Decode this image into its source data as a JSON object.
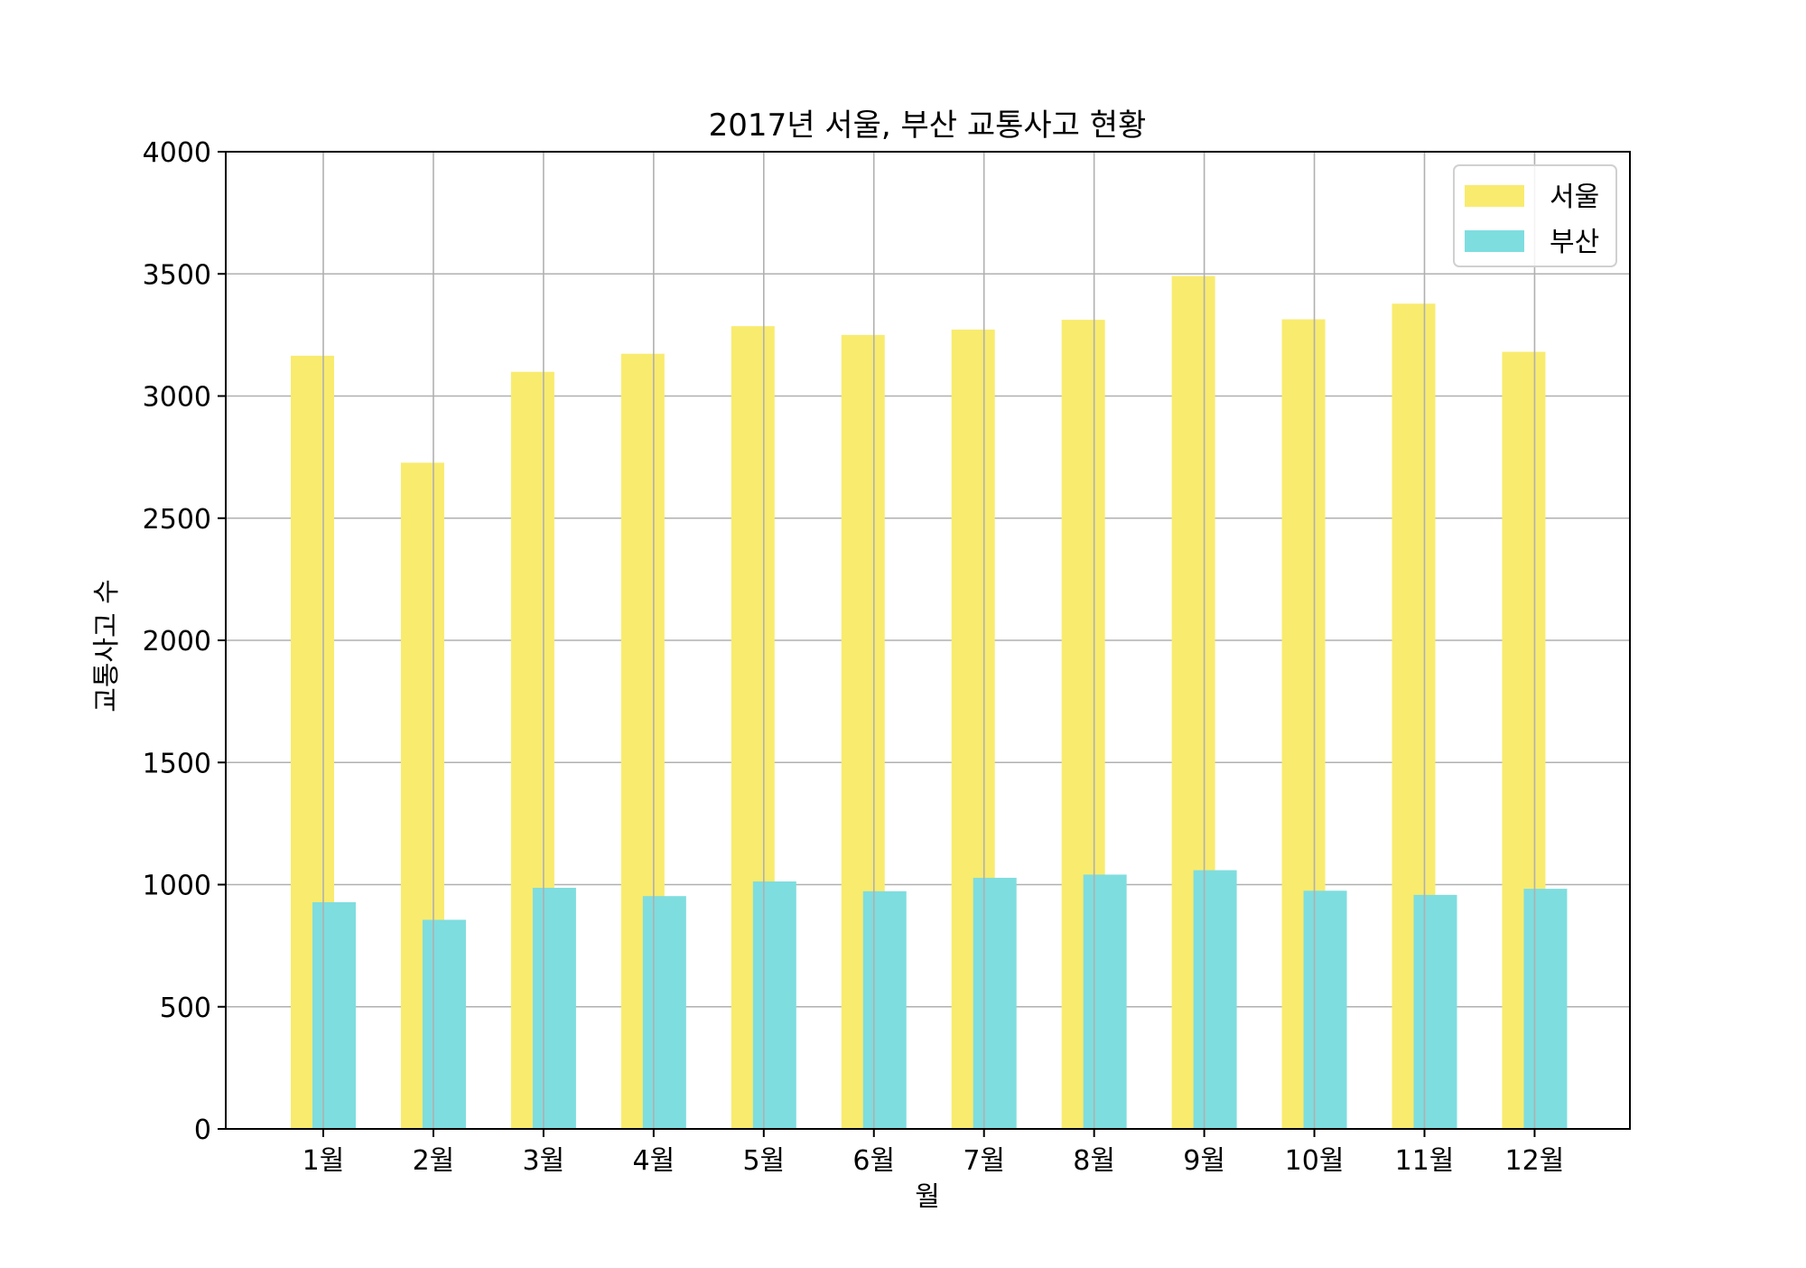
{
  "chart_data": {
    "type": "bar",
    "title": "2017년 서울, 부산 교통사고 현황",
    "xlabel": "월",
    "ylabel": "교통사고 수",
    "categories": [
      "1월",
      "2월",
      "3월",
      "4월",
      "5월",
      "6월",
      "7월",
      "8월",
      "9월",
      "10월",
      "11월",
      "12월"
    ],
    "series": [
      {
        "name": "서울",
        "color": "#f9eb6e",
        "values": [
          3165,
          2727,
          3099,
          3173,
          3286,
          3250,
          3272,
          3312,
          3491,
          3314,
          3378,
          3181
        ]
      },
      {
        "name": "부산",
        "color": "#7edddf",
        "values": [
          928,
          856,
          987,
          953,
          1013,
          973,
          1028,
          1041,
          1059,
          975,
          958,
          983
        ]
      }
    ],
    "ylim": [
      0,
      4000
    ],
    "yticks": [
      0,
      500,
      1000,
      1500,
      2000,
      2500,
      3000,
      3500,
      4000
    ],
    "grid": true,
    "legend_position": "top-right"
  }
}
